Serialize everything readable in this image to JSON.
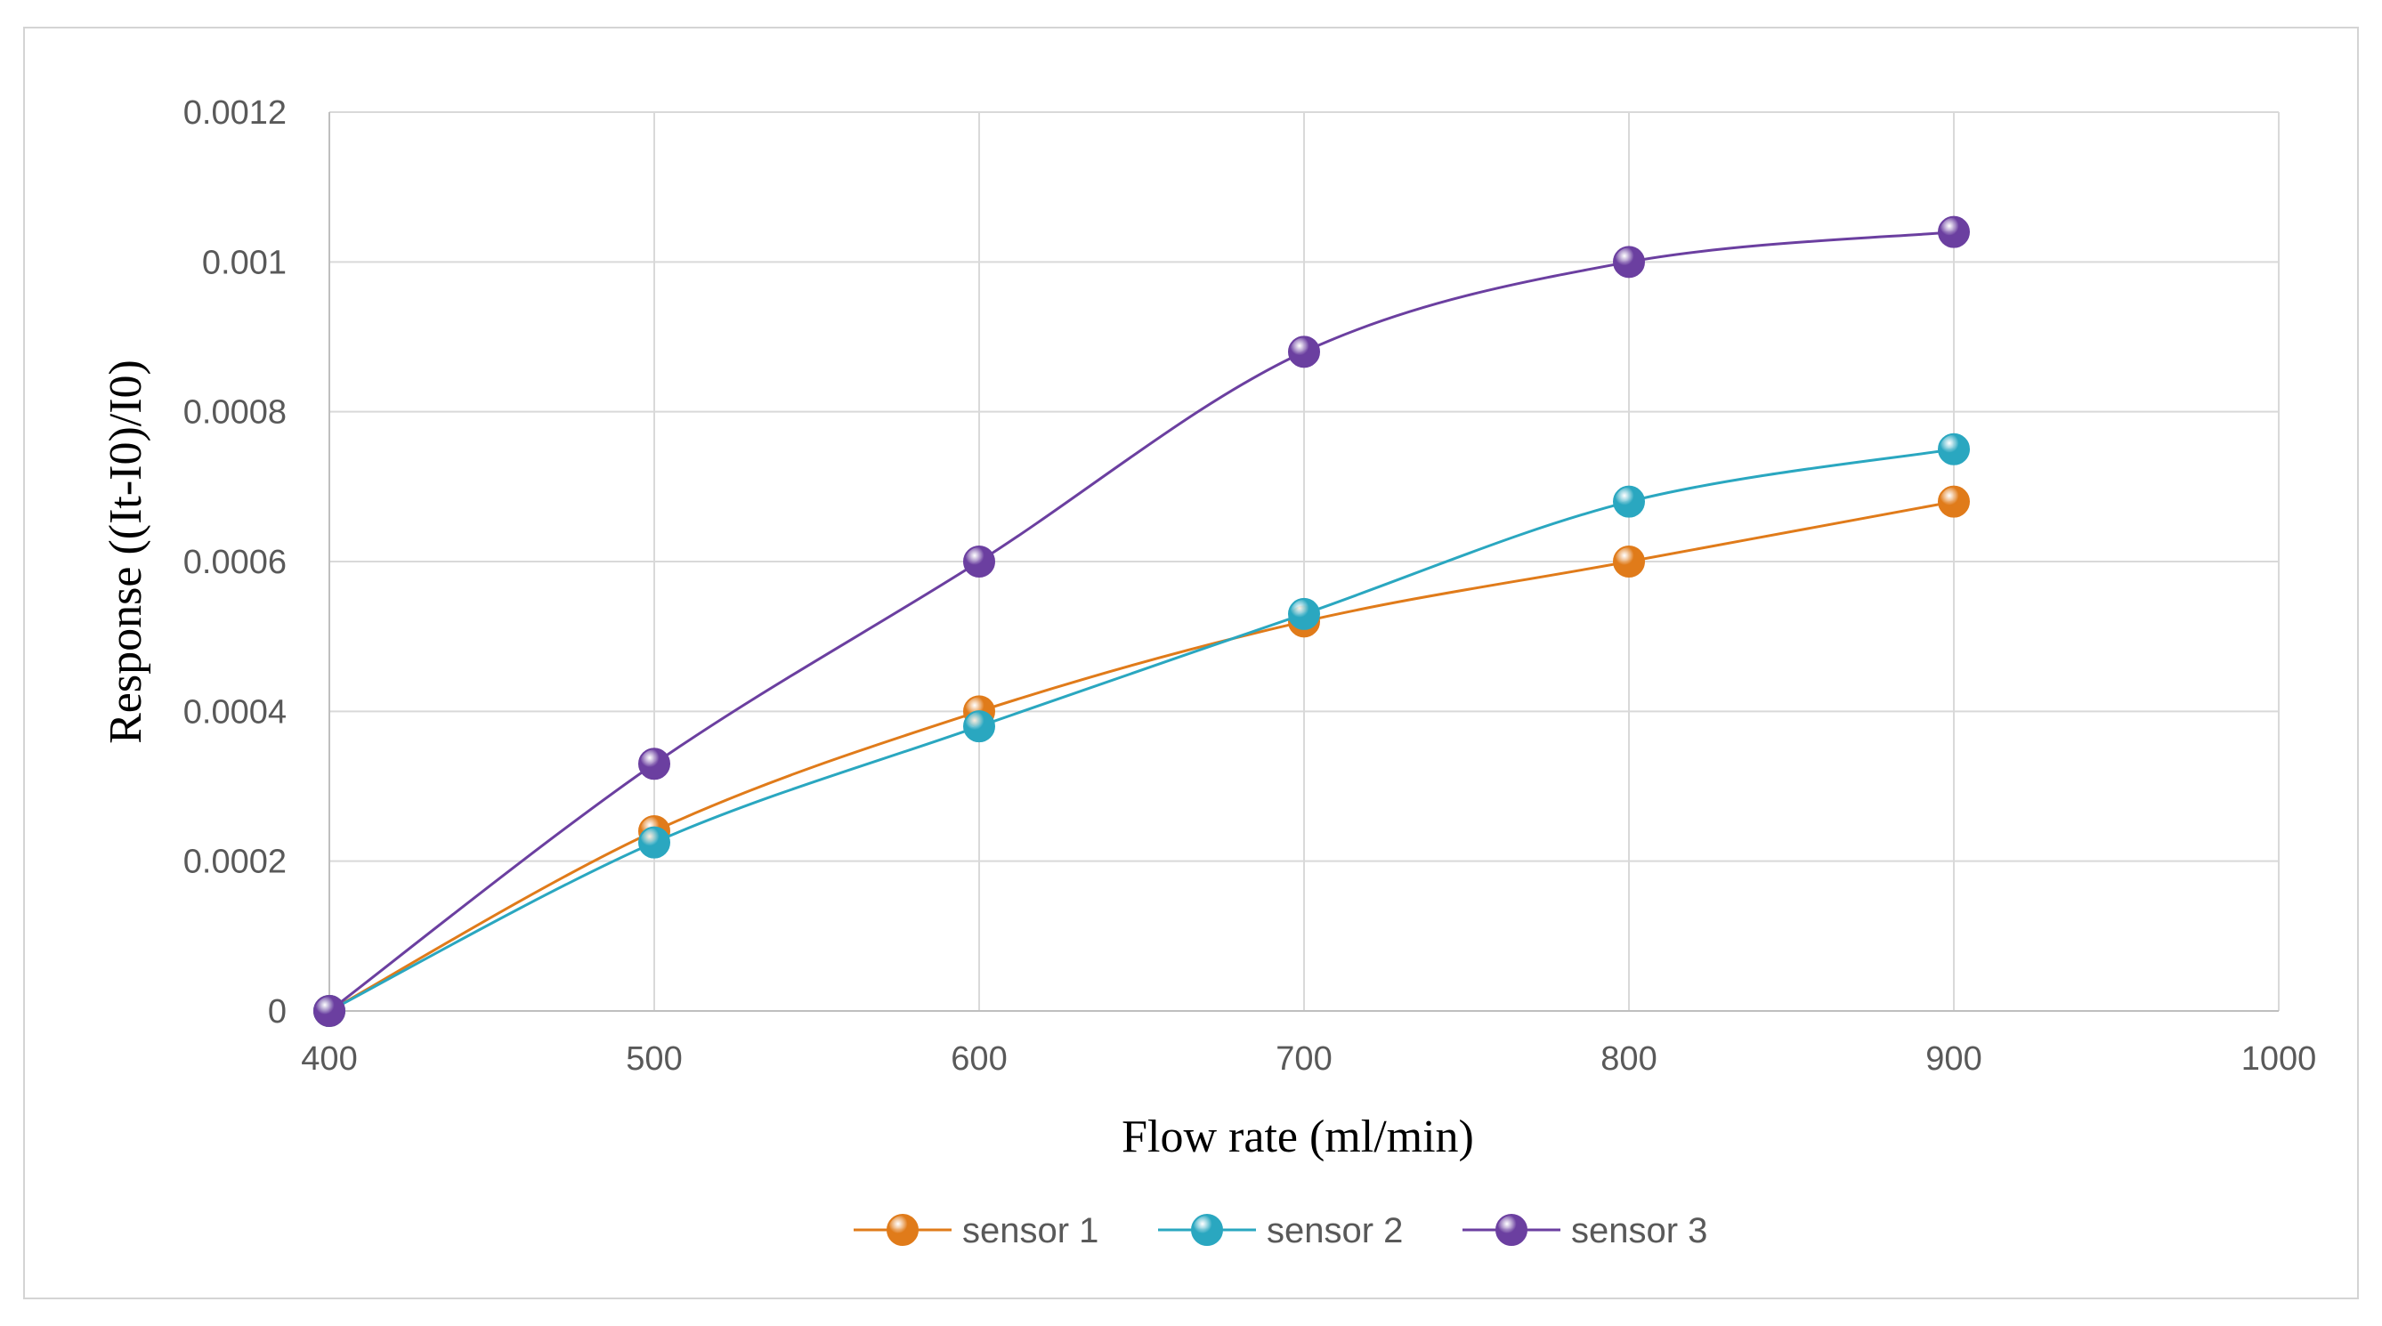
{
  "chart_data": {
    "type": "line",
    "title": "",
    "xlabel": "Flow rate (ml/min)",
    "ylabel": "Response ((It-I0)/I0)",
    "xlim": [
      400,
      1000
    ],
    "ylim": [
      0,
      0.0012
    ],
    "x_ticks": [
      400,
      500,
      600,
      700,
      800,
      900,
      1000
    ],
    "x_tick_labels": [
      "400",
      "500",
      "600",
      "700",
      "800",
      "900",
      "1000"
    ],
    "y_ticks": [
      0,
      0.0002,
      0.0004,
      0.0006,
      0.0008,
      0.001,
      0.0012
    ],
    "y_tick_labels": [
      "0",
      "0.0002",
      "0.0004",
      "0.0006",
      "0.0008",
      "0.001",
      "0.0012"
    ],
    "grid": true,
    "legend_position": "bottom",
    "smooth_lines": true,
    "series": [
      {
        "name": "sensor 1",
        "color": "#E07B1A",
        "x": [
          400,
          500,
          600,
          700,
          800,
          900
        ],
        "y": [
          0,
          0.00024,
          0.0004,
          0.00052,
          0.0006,
          0.00068
        ]
      },
      {
        "name": "sensor 2",
        "color": "#2AA7C0",
        "x": [
          400,
          500,
          600,
          700,
          800,
          900
        ],
        "y": [
          0,
          0.000225,
          0.00038,
          0.00053,
          0.00068,
          0.00075
        ]
      },
      {
        "name": "sensor 3",
        "color": "#6B3FA0",
        "x": [
          400,
          500,
          600,
          700,
          800,
          900
        ],
        "y": [
          0,
          0.00033,
          0.0006,
          0.00088,
          0.001,
          0.00104
        ]
      }
    ]
  }
}
